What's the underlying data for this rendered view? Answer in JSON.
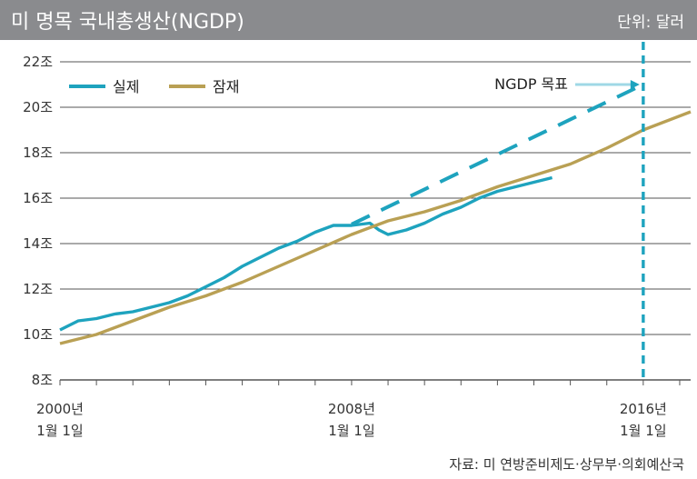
{
  "header": {
    "title": "미 명목 국내총생산(NGDP)",
    "unit": "단위: 달러"
  },
  "source": "자료: 미 연방준비제도·상무부·의회예산국",
  "colors": {
    "header_bg": "#8a8b8e",
    "actual": "#1ea3be",
    "potential": "#b9a054",
    "target": "#1ea3be",
    "grid": "#555555"
  },
  "chart_data": {
    "type": "line",
    "title": "미 명목 국내총생산(NGDP)",
    "ylabel": "",
    "xlabel": "",
    "ylim": [
      8,
      22
    ],
    "xlim": [
      2000,
      2017.3
    ],
    "y_ticks": [
      {
        "value": 8,
        "label": "8조"
      },
      {
        "value": 10,
        "label": "10조"
      },
      {
        "value": 12,
        "label": "12조"
      },
      {
        "value": 14,
        "label": "14조"
      },
      {
        "value": 16,
        "label": "16조"
      },
      {
        "value": 18,
        "label": "18조"
      },
      {
        "value": 20,
        "label": "20조"
      },
      {
        "value": 22,
        "label": "22조"
      }
    ],
    "x_ticks": [
      {
        "value": 2000,
        "line1": "2000년",
        "line2": "1월 1일"
      },
      {
        "value": 2008,
        "line1": "2008년",
        "line2": "1월 1일"
      },
      {
        "value": 2016,
        "line1": "2016년",
        "line2": "1월 1일"
      }
    ],
    "legend": {
      "placement": "top-left"
    },
    "series": [
      {
        "name": "실제",
        "key": "actual",
        "style": "solid",
        "x": [
          2000,
          2000.5,
          2001,
          2001.5,
          2002,
          2002.5,
          2003,
          2003.5,
          2004,
          2004.5,
          2005,
          2005.5,
          2006,
          2006.5,
          2007,
          2007.5,
          2008,
          2008.5,
          2008.75,
          2009,
          2009.5,
          2010,
          2010.5,
          2011,
          2011.5,
          2012,
          2012.5,
          2013,
          2013.5
        ],
        "values": [
          10.2,
          10.6,
          10.7,
          10.9,
          11.0,
          11.2,
          11.4,
          11.7,
          12.1,
          12.5,
          13.0,
          13.4,
          13.8,
          14.1,
          14.5,
          14.8,
          14.8,
          14.9,
          14.6,
          14.4,
          14.6,
          14.9,
          15.3,
          15.6,
          16.0,
          16.3,
          16.5,
          16.7,
          16.9
        ]
      },
      {
        "name": "잠재",
        "key": "potential",
        "style": "solid",
        "x": [
          2000,
          2001,
          2002,
          2003,
          2004,
          2005,
          2006,
          2007,
          2008,
          2009,
          2010,
          2011,
          2012,
          2013,
          2014,
          2015,
          2016,
          2017.3
        ],
        "values": [
          9.6,
          10.0,
          10.6,
          11.2,
          11.7,
          12.3,
          13.0,
          13.7,
          14.4,
          15.0,
          15.4,
          15.9,
          16.5,
          17.0,
          17.5,
          18.2,
          19.0,
          19.8
        ]
      },
      {
        "name": "NGDP 목표",
        "key": "target",
        "style": "dashed",
        "x": [
          2008.0,
          2016.0
        ],
        "values": [
          14.85,
          21.0
        ]
      }
    ],
    "annotations": [
      {
        "text": "NGDP 목표",
        "points_to_x": 2016.0,
        "points_to_y": 21.0
      },
      {
        "type": "vline",
        "x": 2016.0,
        "style": "dashed"
      }
    ]
  }
}
